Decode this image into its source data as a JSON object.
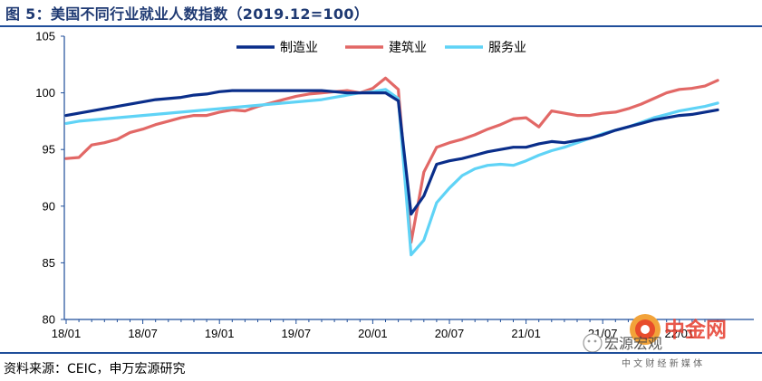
{
  "title": "图 5：美国不同行业就业人数指数（2019.12=100）",
  "source": "资料来源：CEIC，申万宏源研究",
  "watermark": {
    "brand": "中金网",
    "tagline": "中 文 财 经 新 媒 体",
    "handle": "宏源宏观",
    "icon": "wechat-icon"
  },
  "colors": {
    "manufacturing": "#0a2e8a",
    "construction": "#e26866",
    "services": "#5fd3f6",
    "axis": "#1f4e9a"
  },
  "chart_data": {
    "type": "line",
    "title": "",
    "xlabel": "",
    "ylabel": "",
    "ylim": [
      80,
      105
    ],
    "yticks": [
      80,
      85,
      90,
      95,
      100,
      105
    ],
    "xtick_labels": [
      "18/01",
      "18/07",
      "19/01",
      "19/07",
      "20/01",
      "20/07",
      "21/01",
      "21/07",
      "22/01"
    ],
    "legend_position": "top-center",
    "grid": false,
    "x": [
      "18/01",
      "18/02",
      "18/03",
      "18/04",
      "18/05",
      "18/06",
      "18/07",
      "18/08",
      "18/09",
      "18/10",
      "18/11",
      "18/12",
      "19/01",
      "19/02",
      "19/03",
      "19/04",
      "19/05",
      "19/06",
      "19/07",
      "19/08",
      "19/09",
      "19/10",
      "19/11",
      "19/12",
      "20/01",
      "20/02",
      "20/03",
      "20/04",
      "20/05",
      "20/06",
      "20/07",
      "20/08",
      "20/09",
      "20/10",
      "20/11",
      "20/12",
      "21/01",
      "21/02",
      "21/03",
      "21/04",
      "21/05",
      "21/06",
      "21/07",
      "21/08",
      "21/09",
      "21/10",
      "21/11",
      "21/12",
      "22/01",
      "22/02",
      "22/03",
      "22/04"
    ],
    "series": [
      {
        "name": "制造业",
        "values": [
          98.0,
          98.2,
          98.4,
          98.6,
          98.8,
          99.0,
          99.2,
          99.4,
          99.5,
          99.6,
          99.8,
          99.9,
          100.1,
          100.2,
          100.2,
          100.2,
          100.2,
          100.2,
          100.2,
          100.2,
          100.2,
          100.1,
          100.0,
          100.0,
          100.0,
          100.0,
          99.3,
          89.3,
          90.9,
          93.7,
          94.0,
          94.2,
          94.5,
          94.8,
          95.0,
          95.2,
          95.2,
          95.5,
          95.7,
          95.6,
          95.8,
          96.0,
          96.3,
          96.7,
          97.0,
          97.3,
          97.6,
          97.8,
          98.0,
          98.1,
          98.3,
          98.5
        ]
      },
      {
        "name": "建筑业",
        "values": [
          94.2,
          94.3,
          95.4,
          95.6,
          95.9,
          96.5,
          96.8,
          97.2,
          97.5,
          97.8,
          98.0,
          98.0,
          98.3,
          98.5,
          98.4,
          98.8,
          99.1,
          99.4,
          99.7,
          99.9,
          100.0,
          100.1,
          100.2,
          100.0,
          100.4,
          101.3,
          100.3,
          86.8,
          93.0,
          95.2,
          95.6,
          95.9,
          96.3,
          96.8,
          97.2,
          97.7,
          97.8,
          97.0,
          98.4,
          98.2,
          98.0,
          98.0,
          98.2,
          98.3,
          98.6,
          99.0,
          99.5,
          100.0,
          100.3,
          100.4,
          100.6,
          101.1
        ]
      },
      {
        "name": "服务业",
        "values": [
          97.3,
          97.5,
          97.6,
          97.7,
          97.8,
          97.9,
          98.0,
          98.1,
          98.2,
          98.3,
          98.4,
          98.5,
          98.6,
          98.7,
          98.8,
          98.9,
          99.0,
          99.1,
          99.2,
          99.3,
          99.4,
          99.6,
          99.8,
          100.0,
          100.1,
          100.3,
          99.5,
          85.7,
          87.0,
          90.3,
          91.6,
          92.7,
          93.3,
          93.6,
          93.7,
          93.6,
          94.0,
          94.5,
          94.9,
          95.2,
          95.6,
          96.0,
          96.4,
          96.7,
          97.0,
          97.4,
          97.8,
          98.1,
          98.4,
          98.6,
          98.8,
          99.1
        ]
      }
    ]
  }
}
